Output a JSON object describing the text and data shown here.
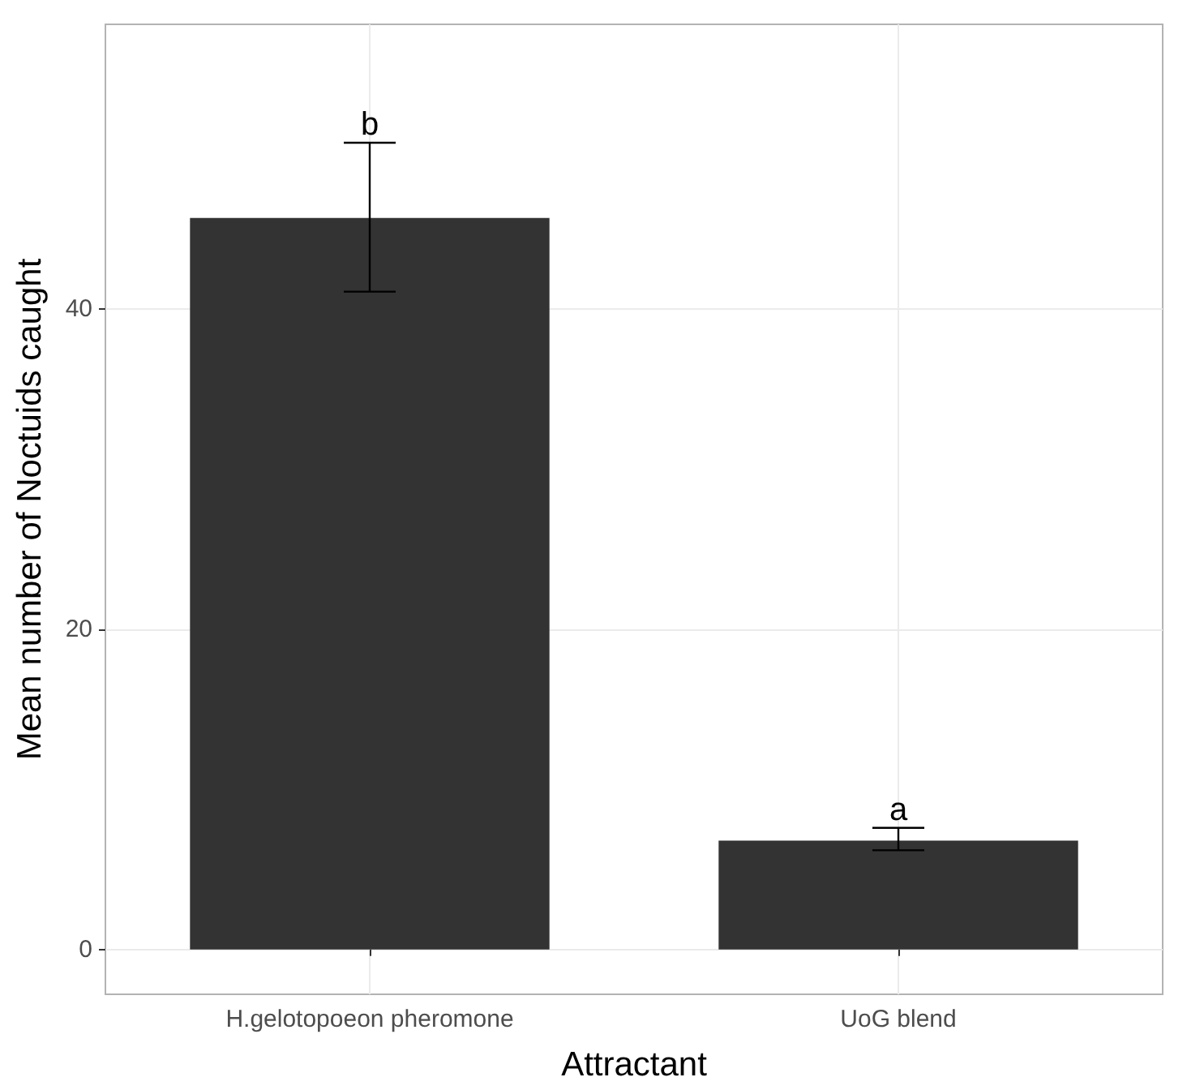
{
  "chart_data": {
    "type": "bar",
    "xlabel": "Attractant",
    "ylabel": "Mean number of Noctuids caught",
    "categories": [
      "H.gelotopoeon pheromone",
      "UoG blend"
    ],
    "values": [
      45.7,
      6.8
    ],
    "color": "#333333",
    "errors": [
      [
        41.1,
        50.4
      ],
      [
        6.2,
        7.6
      ]
    ],
    "ylim": [
      -2.8,
      57.8
    ],
    "yticks": [
      0,
      20,
      40
    ],
    "grid": true,
    "annotations": [
      {
        "text": "b",
        "x": "H.gelotopoeon pheromone",
        "y": 50.4
      },
      {
        "text": "a",
        "x": "UoG blend",
        "y": 7.6
      }
    ]
  }
}
